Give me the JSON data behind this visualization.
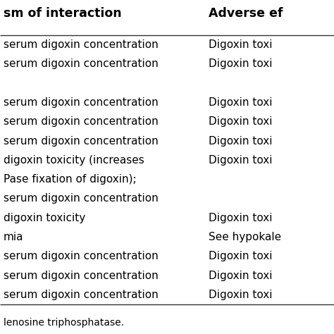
{
  "header_col1": "sm of interaction",
  "header_col2": "Adverse ef",
  "rows": [
    [
      "serum digoxin concentration",
      "Digoxin toxi"
    ],
    [
      "serum digoxin concentration",
      "Digoxin toxi"
    ],
    [
      "",
      ""
    ],
    [
      "serum digoxin concentration",
      "Digoxin toxi"
    ],
    [
      "serum digoxin concentration",
      "Digoxin toxi"
    ],
    [
      "serum digoxin concentration",
      "Digoxin toxi"
    ],
    [
      "digoxin toxicity (increases",
      "Digoxin toxi"
    ],
    [
      "Pase fixation of digoxin);",
      ""
    ],
    [
      "serum digoxin concentration",
      ""
    ],
    [
      "digoxin toxicity",
      "Digoxin toxi"
    ],
    [
      "mia",
      "See hypokale"
    ],
    [
      "serum digoxin concentration",
      "Digoxin toxi"
    ],
    [
      "serum digoxin concentration",
      "Digoxin toxi"
    ],
    [
      "serum digoxin concentration",
      "Digoxin toxi"
    ]
  ],
  "footnote": "lenosine triphosphatase.",
  "bg_color": "#ffffff",
  "text_color": "#000000",
  "header_text_color": "#000000",
  "line_color": "#333333",
  "font_size": 11.0,
  "header_font_size": 12.5
}
